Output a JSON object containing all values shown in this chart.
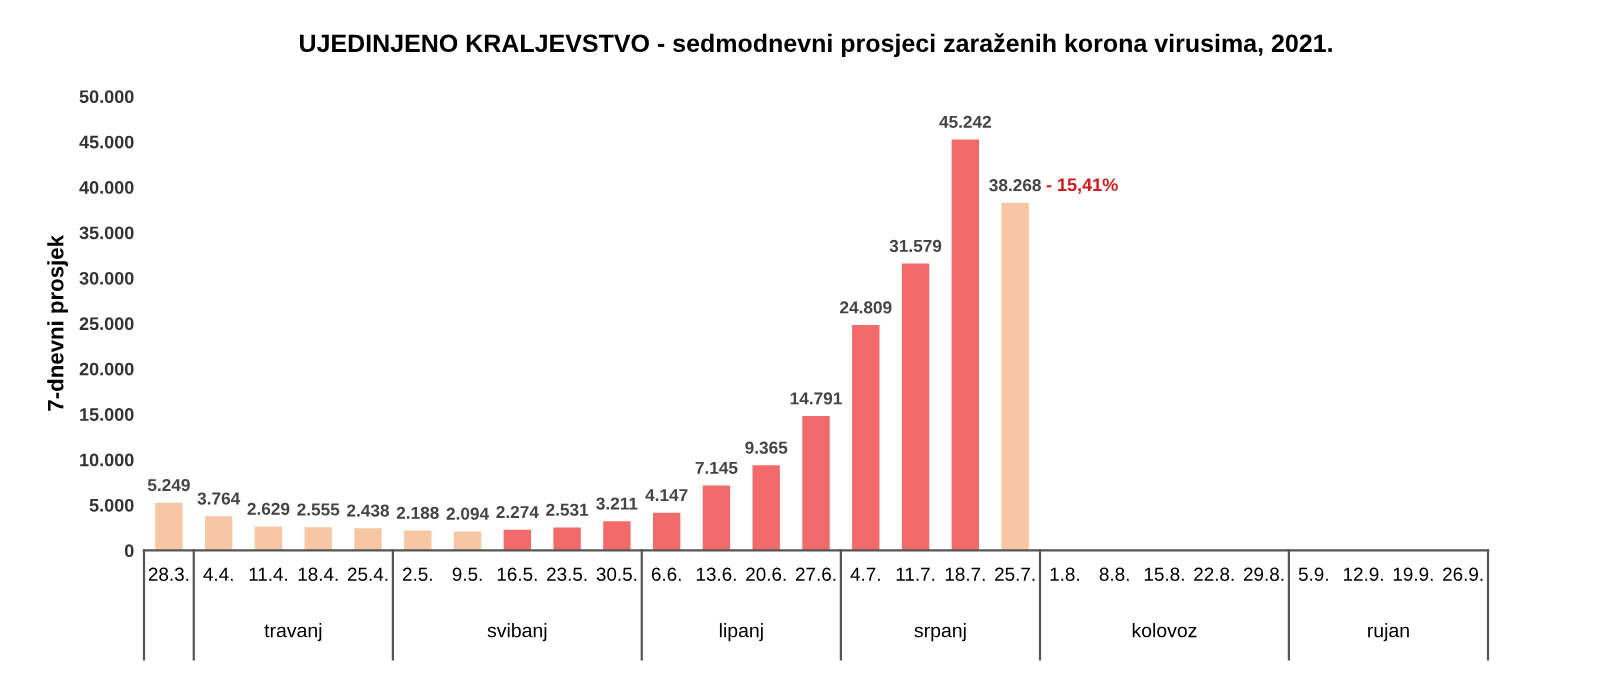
{
  "chart_data": {
    "type": "bar",
    "title": "UJEDINJENO KRALJEVSTVO - sedmodnevni prosjeci zaraženih korona virusima, 2021.",
    "ylabel": "7-dnevni prosjek",
    "categories": [
      "28.3.",
      "4.4.",
      "11.4.",
      "18.4.",
      "25.4.",
      "2.5.",
      "9.5.",
      "16.5.",
      "23.5.",
      "30.5.",
      "6.6.",
      "13.6.",
      "20.6.",
      "27.6.",
      "4.7.",
      "11.7.",
      "18.7.",
      "25.7.",
      "1.8.",
      "8.8.",
      "15.8.",
      "22.8.",
      "29.8.",
      "5.9.",
      "12.9.",
      "19.9.",
      "26.9."
    ],
    "values": [
      5249,
      3764,
      2629,
      2555,
      2438,
      2188,
      2094,
      2274,
      2531,
      3211,
      4147,
      7145,
      9365,
      14791,
      24809,
      31579,
      45242,
      38268,
      null,
      null,
      null,
      null,
      null,
      null,
      null,
      null,
      null
    ],
    "value_labels": [
      "5.249",
      "3.764",
      "2.629",
      "2.555",
      "2.438",
      "2.188",
      "2.094",
      "2.274",
      "2.531",
      "3.211",
      "4.147",
      "7.145",
      "9.365",
      "14.791",
      "24.809",
      "31.579",
      "45.242",
      "38.268",
      null,
      null,
      null,
      null,
      null,
      null,
      null,
      null,
      null
    ],
    "colors": [
      "#f7c6a3",
      "#f7c6a3",
      "#f7c6a3",
      "#f7c6a3",
      "#f7c6a3",
      "#f7c6a3",
      "#f7c6a3",
      "#f26b6b",
      "#f26b6b",
      "#f26b6b",
      "#f26b6b",
      "#f26b6b",
      "#f26b6b",
      "#f26b6b",
      "#f26b6b",
      "#f26b6b",
      "#f26b6b",
      "#f7c6a3",
      "#f26b6b",
      "#f26b6b",
      "#f26b6b",
      "#f26b6b",
      "#f26b6b",
      "#f26b6b",
      "#f26b6b",
      "#f26b6b",
      "#f26b6b"
    ],
    "ylim": [
      0,
      50000
    ],
    "yticks": [
      0,
      {
        "value": 5000,
        "label": "5.000"
      },
      {
        "value": 10000,
        "label": "10.000"
      },
      {
        "value": 15000,
        "label": "15.000"
      },
      {
        "value": 20000,
        "label": "20.000"
      },
      {
        "value": 25000,
        "label": "25.000"
      },
      {
        "value": 30000,
        "label": "30.000"
      },
      {
        "value": 35000,
        "label": "35.000"
      },
      {
        "value": 40000,
        "label": "40.000"
      },
      {
        "value": 45000,
        "label": "45.000"
      },
      {
        "value": 50000,
        "label": "50.000"
      }
    ],
    "annotations": [
      {
        "text": "- 15,41%",
        "x": "25.7.",
        "y": 38268
      },
      "travanj",
      "svibanj",
      "lipanj",
      "srpanj",
      "kolovoz",
      "rujan"
    ],
    "grid": false
  }
}
